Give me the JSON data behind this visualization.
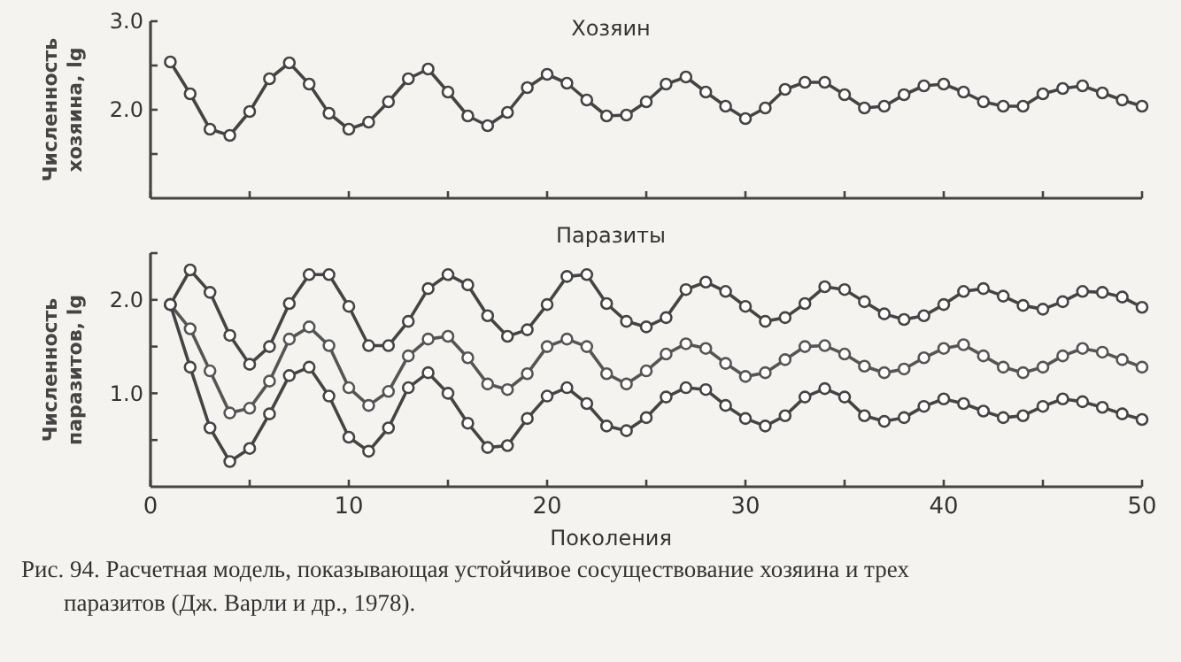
{
  "chart_data": [
    {
      "type": "line",
      "title": "Хозяин",
      "ylabel": "Численность хозяина, lg",
      "x": [
        1,
        2,
        3,
        4,
        5,
        6,
        7,
        8,
        9,
        10,
        11,
        12,
        13,
        14,
        15,
        16,
        17,
        18,
        19,
        20,
        21,
        22,
        23,
        24,
        25,
        26,
        27,
        28,
        29,
        30,
        31,
        32,
        33,
        34,
        35,
        36,
        37,
        38,
        39,
        40,
        41,
        42,
        43,
        44,
        45,
        46,
        47,
        48,
        49,
        50
      ],
      "xlim": [
        0,
        50
      ],
      "xticks": [
        {
          "value": 0,
          "label": null
        },
        {
          "value": 5,
          "label": null
        },
        {
          "value": 10,
          "label": null
        },
        {
          "value": 15,
          "label": null
        },
        {
          "value": 20,
          "label": null
        },
        {
          "value": 25,
          "label": null
        },
        {
          "value": 30,
          "label": null
        },
        {
          "value": 35,
          "label": null
        },
        {
          "value": 40,
          "label": null
        },
        {
          "value": 45,
          "label": null
        },
        {
          "value": 50,
          "label": null
        }
      ],
      "ylim": [
        1.0,
        3.0
      ],
      "yticks": [
        {
          "value": 1.5,
          "label": null
        },
        {
          "value": 2.0,
          "label": "2.0"
        },
        {
          "value": 2.5,
          "label": null
        },
        {
          "value": 3.0,
          "label": "3.0"
        }
      ],
      "tick_labels": "y",
      "marker": "circle",
      "series": [
        {
          "color": "#444444",
          "values": [
            2.54,
            2.18,
            1.78,
            1.71,
            1.98,
            2.35,
            2.53,
            2.29,
            1.96,
            1.78,
            1.86,
            2.09,
            2.35,
            2.46,
            2.2,
            1.93,
            1.82,
            1.97,
            2.25,
            2.4,
            2.3,
            2.11,
            1.93,
            1.94,
            2.09,
            2.29,
            2.37,
            2.2,
            2.04,
            1.9,
            2.02,
            2.23,
            2.31,
            2.31,
            2.17,
            2.02,
            2.04,
            2.17,
            2.27,
            2.29,
            2.2,
            2.09,
            2.04,
            2.04,
            2.18,
            2.24,
            2.27,
            2.19,
            2.11,
            2.04
          ]
        }
      ]
    },
    {
      "type": "line",
      "title": "Паразиты",
      "xlabel": "Поколения",
      "ylabel": "Численность паразитов, lg",
      "x": [
        1,
        2,
        3,
        4,
        5,
        6,
        7,
        8,
        9,
        10,
        11,
        12,
        13,
        14,
        15,
        16,
        17,
        18,
        19,
        20,
        21,
        22,
        23,
        24,
        25,
        26,
        27,
        28,
        29,
        30,
        31,
        32,
        33,
        34,
        35,
        36,
        37,
        38,
        39,
        40,
        41,
        42,
        43,
        44,
        45,
        46,
        47,
        48,
        49,
        50
      ],
      "xlim": [
        0,
        50
      ],
      "xticks": [
        0,
        {
          "value": 5,
          "label": null
        },
        10,
        {
          "value": 15,
          "label": null
        },
        20,
        {
          "value": 25,
          "label": null
        },
        30,
        {
          "value": 35,
          "label": null
        },
        40,
        {
          "value": 45,
          "label": null
        },
        50
      ],
      "ylim": [
        0,
        2.5
      ],
      "yticks": [
        {
          "value": 0.5,
          "label": null
        },
        {
          "value": 1.0,
          "label": "1.0"
        },
        {
          "value": 1.5,
          "label": null
        },
        {
          "value": 2.0,
          "label": "2.0"
        },
        {
          "value": 2.5,
          "label": null
        }
      ],
      "marker": "circle",
      "annotations": [
        "Рис. 94. Расчетная модель, показывающая устойчивое сосуществование хозяина и трех паразитов (Дж. Варли и др., 1978)."
      ],
      "series": [
        {
          "color": "#444444",
          "values": [
            1.95,
            2.32,
            2.08,
            1.62,
            1.31,
            1.5,
            1.96,
            2.27,
            2.27,
            1.93,
            1.51,
            1.51,
            1.77,
            2.12,
            2.27,
            2.16,
            1.83,
            1.61,
            1.68,
            1.95,
            2.25,
            2.27,
            1.96,
            1.77,
            1.71,
            1.81,
            2.11,
            2.19,
            2.09,
            1.93,
            1.77,
            1.81,
            1.96,
            2.14,
            2.11,
            1.98,
            1.85,
            1.79,
            1.83,
            1.95,
            2.09,
            2.12,
            2.04,
            1.94,
            1.9,
            1.98,
            2.09,
            2.08,
            2.03,
            1.92
          ]
        },
        {
          "color": "#555555",
          "values": [
            1.95,
            1.69,
            1.24,
            0.79,
            0.84,
            1.13,
            1.58,
            1.71,
            1.51,
            1.06,
            0.87,
            1.02,
            1.4,
            1.58,
            1.61,
            1.38,
            1.1,
            1.04,
            1.21,
            1.5,
            1.58,
            1.5,
            1.21,
            1.1,
            1.24,
            1.42,
            1.53,
            1.48,
            1.32,
            1.18,
            1.22,
            1.36,
            1.5,
            1.51,
            1.42,
            1.29,
            1.22,
            1.26,
            1.38,
            1.48,
            1.52,
            1.4,
            1.28,
            1.22,
            1.28,
            1.4,
            1.48,
            1.44,
            1.36,
            1.28
          ]
        },
        {
          "color": "#444444",
          "values": [
            1.95,
            1.28,
            0.63,
            0.27,
            0.41,
            0.78,
            1.19,
            1.28,
            0.97,
            0.53,
            0.38,
            0.63,
            1.06,
            1.22,
            1.0,
            0.68,
            0.42,
            0.44,
            0.73,
            0.97,
            1.06,
            0.89,
            0.65,
            0.6,
            0.74,
            0.96,
            1.06,
            1.04,
            0.87,
            0.73,
            0.65,
            0.76,
            0.96,
            1.05,
            0.96,
            0.76,
            0.7,
            0.74,
            0.86,
            0.94,
            0.89,
            0.81,
            0.74,
            0.76,
            0.86,
            0.94,
            0.91,
            0.85,
            0.78,
            0.72
          ]
        }
      ]
    }
  ]
}
